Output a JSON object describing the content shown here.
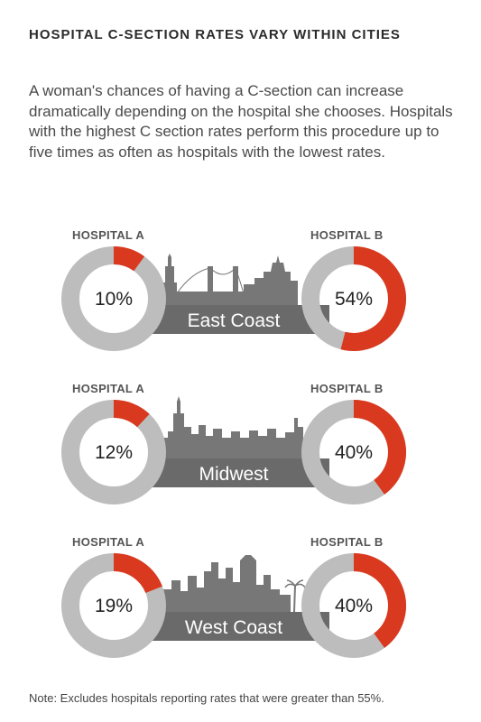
{
  "header": {
    "title": "HOSPITAL C-SECTION RATES VARY WITHIN CITIES",
    "intro": "A woman's chances of having a C-section can increase dramatically depending on the hospital she chooses. Hospitals with the highest C section rates perform this procedure up to five times as often as hospitals with the lowest rates."
  },
  "colors": {
    "accent": "#d9391f",
    "ring": "#bdbdbd",
    "band": "#6a6a6a",
    "skyline": "#777777"
  },
  "chart_data": [
    {
      "type": "pie",
      "region": "East Coast",
      "hospitals": [
        {
          "label": "HOSPITAL A",
          "value": 10,
          "value_label": "10%"
        },
        {
          "label": "HOSPITAL B",
          "value": 54,
          "value_label": "54%"
        }
      ]
    },
    {
      "type": "pie",
      "region": "Midwest",
      "hospitals": [
        {
          "label": "HOSPITAL A",
          "value": 12,
          "value_label": "12%"
        },
        {
          "label": "HOSPITAL B",
          "value": 40,
          "value_label": "40%"
        }
      ]
    },
    {
      "type": "pie",
      "region": "West Coast",
      "hospitals": [
        {
          "label": "HOSPITAL A",
          "value": 19,
          "value_label": "19%"
        },
        {
          "label": "HOSPITAL B",
          "value": 40,
          "value_label": "40%"
        }
      ]
    }
  ],
  "footer": {
    "note": "Note: Excludes hospitals reporting rates that were greater than 55%."
  }
}
